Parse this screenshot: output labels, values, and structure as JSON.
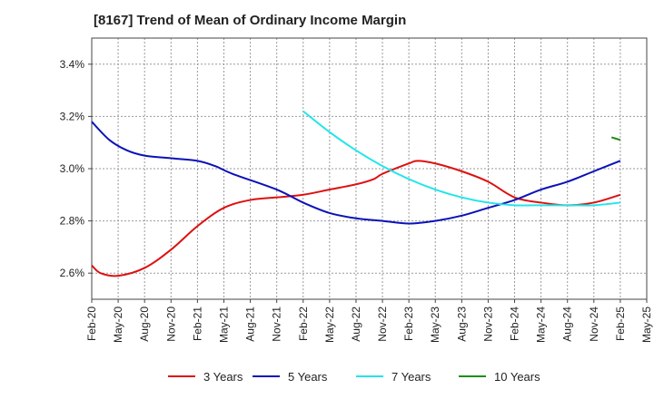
{
  "chart_data": {
    "type": "line",
    "title": "[8167]  Trend of Mean of Ordinary Income Margin",
    "xlabel": "",
    "ylabel": "",
    "ylim": [
      2.5,
      3.5
    ],
    "y_ticks": [
      "2.6%",
      "2.8%",
      "3.0%",
      "3.2%",
      "3.4%"
    ],
    "y_tick_values": [
      2.6,
      2.8,
      3.0,
      3.2,
      3.4
    ],
    "x_ticks": [
      "Feb-20",
      "May-20",
      "Aug-20",
      "Nov-20",
      "Feb-21",
      "May-21",
      "Aug-21",
      "Nov-21",
      "Feb-22",
      "May-22",
      "Aug-22",
      "Nov-22",
      "Feb-23",
      "May-23",
      "Aug-23",
      "Nov-23",
      "Feb-24",
      "May-24",
      "Aug-24",
      "Nov-24",
      "Feb-25",
      "May-25"
    ],
    "grid": true,
    "legend_position": "bottom",
    "series": [
      {
        "name": "3 Years",
        "color": "#dd1111",
        "points": [
          [
            "Feb-20",
            2.63
          ],
          [
            "Mar-20",
            2.6
          ],
          [
            "May-20",
            2.59
          ],
          [
            "Aug-20",
            2.62
          ],
          [
            "Nov-20",
            2.69
          ],
          [
            "Feb-21",
            2.78
          ],
          [
            "May-21",
            2.85
          ],
          [
            "Aug-21",
            2.88
          ],
          [
            "Nov-21",
            2.89
          ],
          [
            "Feb-22",
            2.9
          ],
          [
            "May-22",
            2.92
          ],
          [
            "Aug-22",
            2.94
          ],
          [
            "Oct-22",
            2.96
          ],
          [
            "Nov-22",
            2.98
          ],
          [
            "Feb-23",
            3.02
          ],
          [
            "Mar-23",
            3.03
          ],
          [
            "May-23",
            3.02
          ],
          [
            "Aug-23",
            2.99
          ],
          [
            "Nov-23",
            2.95
          ],
          [
            "Feb-24",
            2.89
          ],
          [
            "May-24",
            2.87
          ],
          [
            "Aug-24",
            2.86
          ],
          [
            "Nov-24",
            2.87
          ],
          [
            "Feb-25",
            2.9
          ]
        ]
      },
      {
        "name": "5 Years",
        "color": "#0b12b8",
        "points": [
          [
            "Feb-20",
            3.18
          ],
          [
            "Apr-20",
            3.11
          ],
          [
            "Jun-20",
            3.07
          ],
          [
            "Aug-20",
            3.05
          ],
          [
            "Nov-20",
            3.04
          ],
          [
            "Feb-21",
            3.03
          ],
          [
            "Apr-21",
            3.01
          ],
          [
            "Jun-21",
            2.98
          ],
          [
            "Nov-21",
            2.92
          ],
          [
            "Feb-22",
            2.87
          ],
          [
            "May-22",
            2.83
          ],
          [
            "Aug-22",
            2.81
          ],
          [
            "Nov-22",
            2.8
          ],
          [
            "Feb-23",
            2.79
          ],
          [
            "May-23",
            2.8
          ],
          [
            "Aug-23",
            2.82
          ],
          [
            "Nov-23",
            2.85
          ],
          [
            "Feb-24",
            2.88
          ],
          [
            "May-24",
            2.92
          ],
          [
            "Aug-24",
            2.95
          ],
          [
            "Nov-24",
            2.99
          ],
          [
            "Feb-25",
            3.03
          ]
        ]
      },
      {
        "name": "7 Years",
        "color": "#22e5ea",
        "points": [
          [
            "Feb-22",
            3.22
          ],
          [
            "May-22",
            3.14
          ],
          [
            "Aug-22",
            3.07
          ],
          [
            "Nov-22",
            3.01
          ],
          [
            "Feb-23",
            2.96
          ],
          [
            "May-23",
            2.92
          ],
          [
            "Aug-23",
            2.89
          ],
          [
            "Nov-23",
            2.87
          ],
          [
            "Feb-24",
            2.86
          ],
          [
            "May-24",
            2.86
          ],
          [
            "Aug-24",
            2.86
          ],
          [
            "Nov-24",
            2.86
          ],
          [
            "Feb-25",
            2.87
          ]
        ]
      },
      {
        "name": "10 Years",
        "color": "#1e8c1e",
        "points": [
          [
            "Jan-25",
            3.12
          ],
          [
            "Feb-25",
            3.11
          ]
        ]
      }
    ]
  }
}
